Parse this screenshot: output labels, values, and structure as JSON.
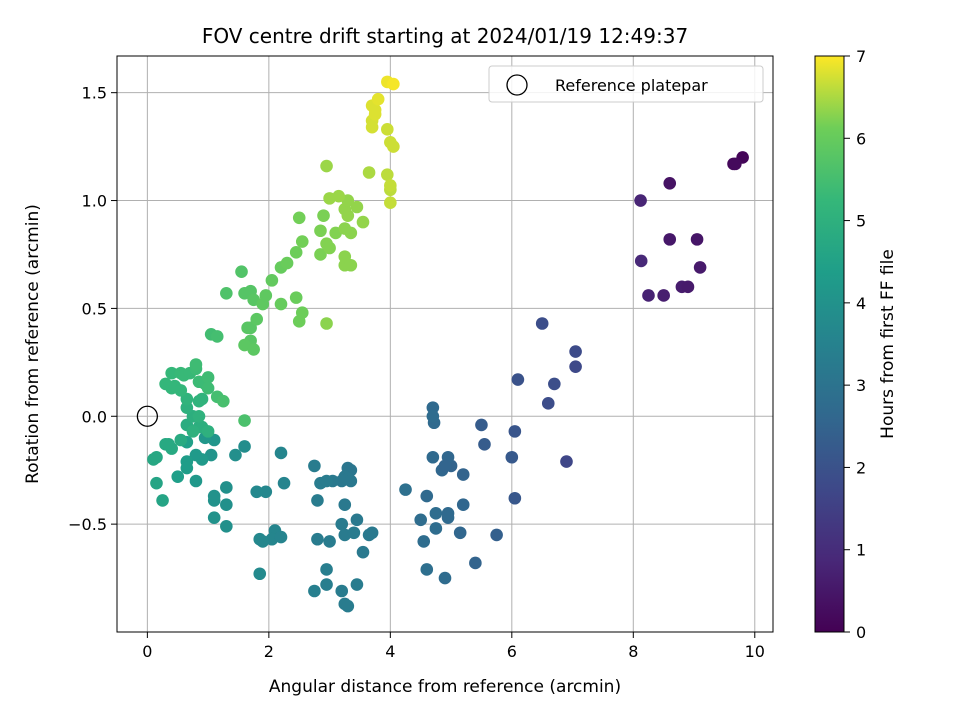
{
  "chart_data": {
    "type": "scatter",
    "title": "FOV centre drift starting at 2024/01/19 12:49:37",
    "xlabel": "Angular distance from reference (arcmin)",
    "ylabel": "Rotation from reference (arcmin)",
    "colorbar_label": "Hours from first FF file",
    "xlim": [
      -0.5,
      10.3
    ],
    "ylim": [
      -1.0,
      1.67
    ],
    "xticks": [
      0,
      2,
      4,
      6,
      8,
      10
    ],
    "yticks": [
      -0.5,
      0.0,
      0.5,
      1.0,
      1.5
    ],
    "ytick_labels": [
      "−0.5",
      "0.0",
      "0.5",
      "1.0",
      "1.5"
    ],
    "colorbar_range": [
      0,
      7
    ],
    "colorbar_ticks": [
      0,
      1,
      2,
      3,
      4,
      5,
      6,
      7
    ],
    "colormap": "viridis",
    "grid": true,
    "legend": {
      "entries": [
        "Reference platepar"
      ],
      "position": "upper right"
    },
    "reference_point": {
      "x": 0,
      "y": 0
    },
    "points": [
      [
        9.8,
        1.2,
        0.1
      ],
      [
        9.65,
        1.17,
        0.15
      ],
      [
        9.68,
        1.17,
        0.2
      ],
      [
        8.6,
        1.08,
        0.4
      ],
      [
        8.12,
        1.0,
        0.8
      ],
      [
        8.6,
        0.82,
        0.5
      ],
      [
        9.05,
        0.82,
        0.45
      ],
      [
        9.1,
        0.69,
        0.55
      ],
      [
        8.13,
        0.72,
        0.9
      ],
      [
        8.25,
        0.56,
        0.75
      ],
      [
        8.5,
        0.56,
        0.65
      ],
      [
        8.8,
        0.6,
        0.6
      ],
      [
        8.9,
        0.6,
        0.55
      ],
      [
        6.5,
        0.43,
        1.9
      ],
      [
        7.05,
        0.3,
        1.8
      ],
      [
        7.05,
        0.23,
        1.75
      ],
      [
        6.1,
        0.17,
        2.0
      ],
      [
        6.7,
        0.15,
        1.9
      ],
      [
        6.6,
        0.06,
        1.85
      ],
      [
        6.9,
        -0.21,
        1.7
      ],
      [
        6.05,
        -0.07,
        2.1
      ],
      [
        5.5,
        -0.04,
        2.3
      ],
      [
        5.55,
        -0.13,
        2.3
      ],
      [
        6.0,
        -0.19,
        2.2
      ],
      [
        6.05,
        -0.38,
        2.15
      ],
      [
        5.75,
        -0.55,
        2.4
      ],
      [
        5.2,
        -0.27,
        2.5
      ],
      [
        5.0,
        -0.23,
        2.5
      ],
      [
        4.95,
        -0.19,
        2.6
      ],
      [
        4.85,
        -0.25,
        2.6
      ],
      [
        4.9,
        -0.23,
        2.55
      ],
      [
        4.7,
        -0.19,
        2.7
      ],
      [
        4.7,
        0.04,
        2.7
      ],
      [
        4.72,
        -0.03,
        2.7
      ],
      [
        4.7,
        0.0,
        2.75
      ],
      [
        4.6,
        -0.37,
        2.7
      ],
      [
        4.5,
        -0.48,
        2.8
      ],
      [
        4.55,
        -0.58,
        2.8
      ],
      [
        4.75,
        -0.45,
        2.8
      ],
      [
        4.75,
        -0.52,
        2.8
      ],
      [
        4.95,
        -0.45,
        2.7
      ],
      [
        4.95,
        -0.47,
        2.7
      ],
      [
        5.2,
        -0.41,
        2.6
      ],
      [
        5.15,
        -0.54,
        2.6
      ],
      [
        5.4,
        -0.68,
        2.5
      ],
      [
        4.9,
        -0.75,
        2.75
      ],
      [
        4.6,
        -0.71,
        2.85
      ],
      [
        4.25,
        -0.34,
        2.9
      ],
      [
        3.3,
        -0.24,
        3.1
      ],
      [
        3.35,
        -0.25,
        3.1
      ],
      [
        3.25,
        -0.28,
        3.15
      ],
      [
        3.2,
        -0.3,
        3.15
      ],
      [
        3.05,
        -0.3,
        3.2
      ],
      [
        3.3,
        -0.29,
        3.15
      ],
      [
        3.35,
        -0.3,
        3.15
      ],
      [
        2.75,
        -0.23,
        3.3
      ],
      [
        2.85,
        -0.31,
        3.3
      ],
      [
        2.95,
        -0.3,
        3.3
      ],
      [
        3.25,
        -0.41,
        3.2
      ],
      [
        3.45,
        -0.48,
        3.2
      ],
      [
        2.8,
        -0.39,
        3.3
      ],
      [
        2.8,
        -0.57,
        3.3
      ],
      [
        3.0,
        -0.58,
        3.3
      ],
      [
        3.2,
        -0.5,
        3.25
      ],
      [
        3.25,
        -0.55,
        3.25
      ],
      [
        3.4,
        -0.54,
        3.25
      ],
      [
        3.55,
        -0.63,
        3.2
      ],
      [
        3.65,
        -0.55,
        3.2
      ],
      [
        3.7,
        -0.54,
        3.2
      ],
      [
        2.95,
        -0.71,
        3.35
      ],
      [
        2.95,
        -0.78,
        3.35
      ],
      [
        2.75,
        -0.81,
        3.4
      ],
      [
        3.2,
        -0.81,
        3.3
      ],
      [
        3.25,
        -0.87,
        3.3
      ],
      [
        3.3,
        -0.88,
        3.3
      ],
      [
        3.45,
        -0.78,
        3.3
      ],
      [
        2.2,
        -0.17,
        3.6
      ],
      [
        2.25,
        -0.31,
        3.55
      ],
      [
        1.95,
        -0.35,
        3.65
      ],
      [
        1.8,
        -0.35,
        3.7
      ],
      [
        2.1,
        -0.53,
        3.6
      ],
      [
        2.05,
        -0.57,
        3.6
      ],
      [
        2.2,
        -0.56,
        3.55
      ],
      [
        1.85,
        -0.57,
        3.7
      ],
      [
        1.9,
        -0.58,
        3.65
      ],
      [
        1.85,
        -0.73,
        3.75
      ],
      [
        1.6,
        -0.14,
        3.85
      ],
      [
        1.45,
        -0.18,
        3.9
      ],
      [
        1.3,
        -0.33,
        3.95
      ],
      [
        1.3,
        -0.41,
        3.95
      ],
      [
        1.3,
        -0.51,
        3.95
      ],
      [
        1.1,
        -0.47,
        4.0
      ],
      [
        1.1,
        -0.37,
        4.0
      ],
      [
        1.1,
        -0.39,
        4.0
      ],
      [
        1.05,
        -0.18,
        4.05
      ],
      [
        1.1,
        -0.11,
        4.1
      ],
      [
        0.95,
        -0.1,
        4.15
      ],
      [
        0.8,
        -0.3,
        4.2
      ],
      [
        0.8,
        -0.18,
        4.25
      ],
      [
        0.9,
        -0.2,
        4.25
      ],
      [
        0.65,
        -0.21,
        4.35
      ],
      [
        0.65,
        -0.24,
        4.35
      ],
      [
        0.5,
        -0.28,
        4.4
      ],
      [
        0.65,
        -0.12,
        4.45
      ],
      [
        0.15,
        -0.31,
        4.6
      ],
      [
        0.25,
        -0.39,
        4.6
      ],
      [
        0.1,
        -0.2,
        4.7
      ],
      [
        0.15,
        -0.19,
        4.7
      ],
      [
        0.3,
        -0.13,
        4.75
      ],
      [
        0.35,
        -0.13,
        4.75
      ],
      [
        0.4,
        -0.15,
        4.75
      ],
      [
        0.55,
        -0.11,
        4.8
      ],
      [
        0.65,
        -0.04,
        4.85
      ],
      [
        0.85,
        -0.05,
        4.9
      ],
      [
        0.9,
        -0.05,
        4.95
      ],
      [
        0.75,
        0.0,
        4.95
      ],
      [
        0.65,
        0.04,
        5.0
      ],
      [
        0.75,
        -0.07,
        5.0
      ],
      [
        1.0,
        -0.07,
        5.0
      ],
      [
        0.85,
        0.0,
        5.05
      ],
      [
        0.85,
        0.07,
        5.1
      ],
      [
        0.9,
        0.08,
        5.1
      ],
      [
        0.65,
        0.08,
        5.1
      ],
      [
        0.3,
        0.15,
        5.2
      ],
      [
        0.4,
        0.13,
        5.2
      ],
      [
        0.45,
        0.14,
        5.2
      ],
      [
        0.55,
        0.12,
        5.2
      ],
      [
        0.4,
        0.2,
        5.25
      ],
      [
        0.55,
        0.2,
        5.3
      ],
      [
        0.6,
        0.19,
        5.3
      ],
      [
        0.7,
        0.2,
        5.3
      ],
      [
        0.8,
        0.22,
        5.35
      ],
      [
        0.85,
        0.16,
        5.35
      ],
      [
        0.95,
        0.15,
        5.35
      ],
      [
        1.0,
        0.18,
        5.4
      ],
      [
        1.0,
        0.13,
        5.4
      ],
      [
        0.8,
        0.24,
        5.4
      ],
      [
        1.05,
        0.38,
        5.45
      ],
      [
        1.15,
        0.37,
        5.5
      ],
      [
        1.15,
        0.09,
        5.5
      ],
      [
        1.25,
        0.07,
        5.55
      ],
      [
        1.6,
        -0.02,
        5.6
      ],
      [
        1.3,
        0.57,
        5.65
      ],
      [
        1.55,
        0.67,
        5.7
      ],
      [
        1.6,
        0.57,
        5.75
      ],
      [
        1.7,
        0.58,
        5.75
      ],
      [
        1.75,
        0.54,
        5.8
      ],
      [
        1.65,
        0.41,
        5.8
      ],
      [
        1.7,
        0.41,
        5.8
      ],
      [
        1.7,
        0.35,
        5.8
      ],
      [
        1.6,
        0.33,
        5.85
      ],
      [
        1.75,
        0.31,
        5.85
      ],
      [
        1.8,
        0.45,
        5.85
      ],
      [
        1.9,
        0.52,
        5.9
      ],
      [
        1.95,
        0.56,
        5.9
      ],
      [
        2.05,
        0.63,
        5.95
      ],
      [
        2.2,
        0.52,
        6.0
      ],
      [
        2.2,
        0.69,
        6.0
      ],
      [
        2.3,
        0.71,
        6.05
      ],
      [
        2.45,
        0.55,
        6.05
      ],
      [
        2.5,
        0.44,
        6.1
      ],
      [
        2.55,
        0.48,
        6.1
      ],
      [
        2.45,
        0.76,
        6.1
      ],
      [
        2.55,
        0.81,
        6.15
      ],
      [
        2.5,
        0.92,
        6.15
      ],
      [
        2.85,
        0.75,
        6.2
      ],
      [
        2.85,
        0.86,
        6.2
      ],
      [
        2.9,
        0.93,
        6.2
      ],
      [
        2.95,
        0.8,
        6.25
      ],
      [
        3.0,
        0.78,
        6.25
      ],
      [
        3.1,
        0.85,
        6.25
      ],
      [
        2.95,
        0.43,
        6.3
      ],
      [
        3.25,
        0.7,
        6.3
      ],
      [
        3.25,
        0.74,
        6.3
      ],
      [
        3.35,
        0.7,
        6.3
      ],
      [
        3.35,
        0.85,
        6.3
      ],
      [
        3.25,
        0.87,
        6.3
      ],
      [
        3.3,
        0.93,
        6.35
      ],
      [
        3.25,
        0.96,
        6.35
      ],
      [
        3.3,
        1.0,
        6.35
      ],
      [
        3.45,
        0.97,
        6.35
      ],
      [
        3.55,
        0.9,
        6.35
      ],
      [
        3.0,
        1.01,
        6.4
      ],
      [
        3.15,
        1.02,
        6.4
      ],
      [
        2.95,
        1.16,
        6.4
      ],
      [
        3.65,
        1.13,
        6.5
      ],
      [
        3.95,
        1.12,
        6.6
      ],
      [
        4.0,
        1.05,
        6.6
      ],
      [
        4.0,
        0.99,
        6.65
      ],
      [
        4.0,
        1.07,
        6.65
      ],
      [
        3.95,
        1.33,
        6.7
      ],
      [
        4.0,
        1.27,
        6.7
      ],
      [
        4.05,
        1.25,
        6.7
      ],
      [
        3.7,
        1.34,
        6.75
      ],
      [
        3.7,
        1.37,
        6.75
      ],
      [
        3.75,
        1.4,
        6.8
      ],
      [
        3.7,
        1.44,
        6.8
      ],
      [
        3.75,
        1.42,
        6.8
      ],
      [
        3.8,
        1.47,
        6.85
      ],
      [
        3.95,
        1.55,
        6.9
      ],
      [
        4.05,
        1.54,
        6.95
      ]
    ]
  }
}
